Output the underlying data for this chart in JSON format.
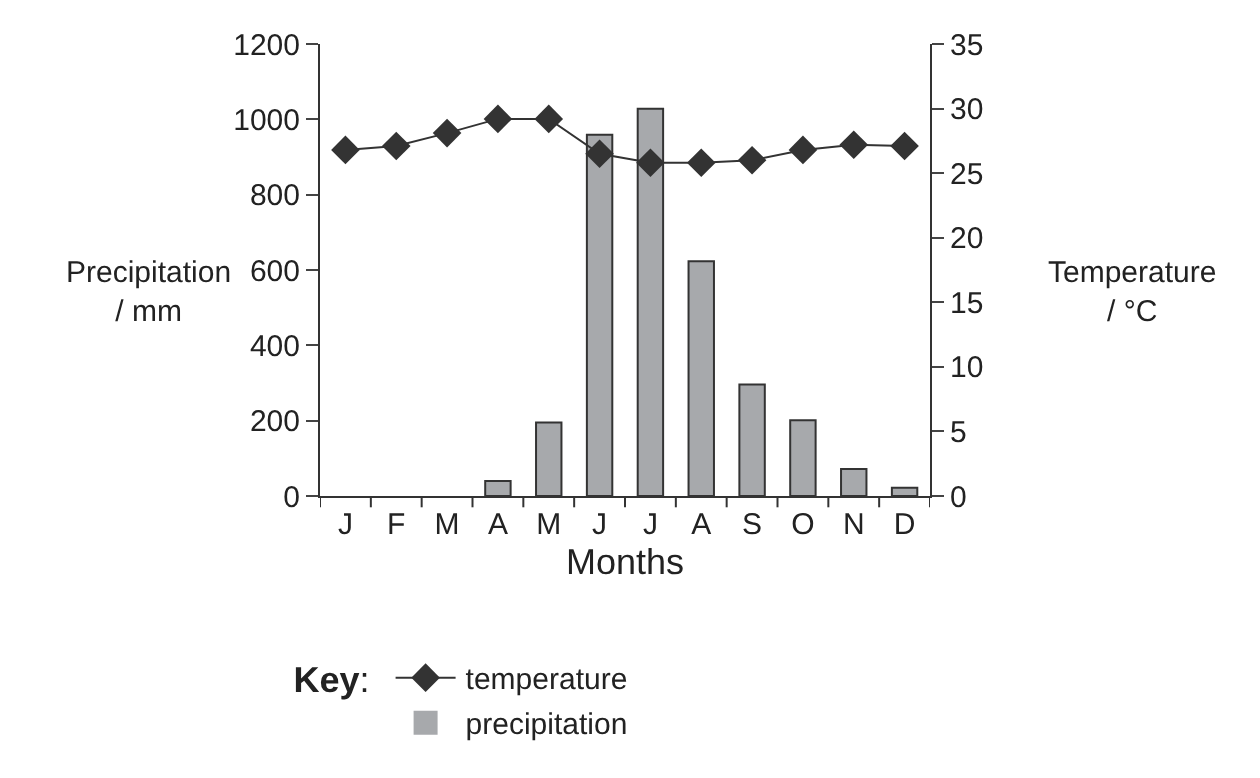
{
  "chart_data": {
    "type": "bar",
    "xlabel": "Months",
    "ylabel": "Precipitation\n/ mm",
    "y2label": "Temperature\n/ °C",
    "legend_title": "Key:",
    "categories": [
      "J",
      "F",
      "M",
      "A",
      "M",
      "J",
      "J",
      "A",
      "S",
      "O",
      "N",
      "D"
    ],
    "series": [
      {
        "name": "temperature",
        "type": "line",
        "axis": "y2",
        "color": "#333333",
        "marker": "diamond",
        "values": [
          26.8,
          27.1,
          28.1,
          29.2,
          29.2,
          26.5,
          25.8,
          25.8,
          26.0,
          26.8,
          27.2,
          27.1
        ]
      },
      {
        "name": "precipitation",
        "color": "#a7a9ac",
        "values": [
          0,
          0,
          0,
          40,
          195,
          959,
          1028,
          623,
          296,
          201,
          72,
          22
        ]
      }
    ],
    "ylim": [
      0,
      1200
    ],
    "yticks": [
      0,
      200,
      400,
      600,
      800,
      1000,
      1200
    ],
    "y2lim": [
      0,
      35
    ],
    "y2ticks": [
      0,
      5,
      10,
      15,
      20,
      25,
      30,
      35
    ],
    "legend": "bottom"
  }
}
